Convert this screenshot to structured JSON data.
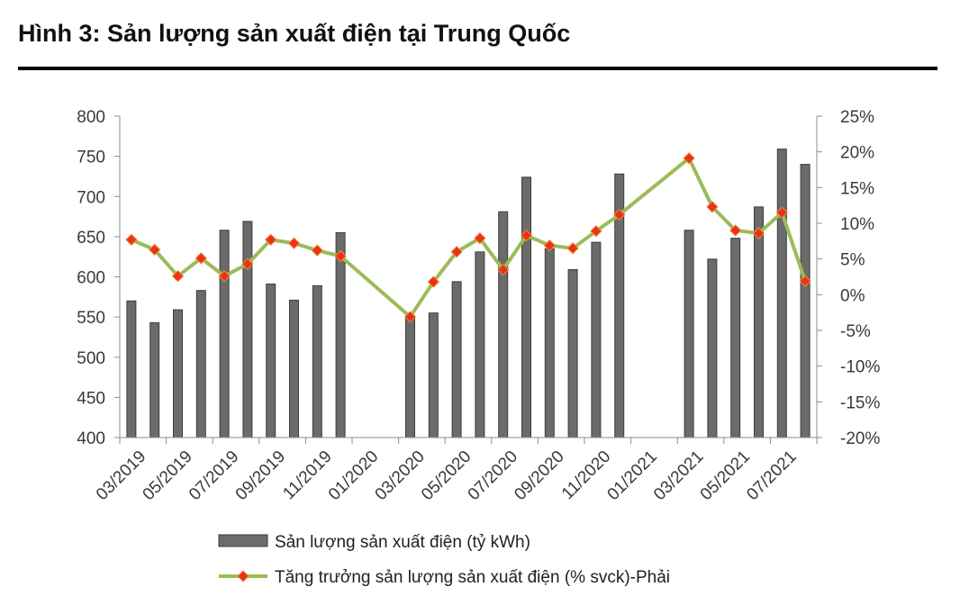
{
  "figure_title": "Hình 3: Sản lượng sản xuất điện tại Trung Quốc",
  "chart_data": {
    "type": "bar+line",
    "title": "Hình 3: Sản lượng sản xuất điện tại Trung Quốc",
    "categories": [
      "03/2019",
      "04/2019",
      "05/2019",
      "06/2019",
      "07/2019",
      "08/2019",
      "09/2019",
      "10/2019",
      "11/2019",
      "12/2019",
      "01/2020",
      "02/2020",
      "03/2020",
      "04/2020",
      "05/2020",
      "06/2020",
      "07/2020",
      "08/2020",
      "09/2020",
      "10/2020",
      "11/2020",
      "12/2020",
      "01/2021",
      "02/2021",
      "03/2021",
      "04/2021",
      "05/2021",
      "06/2021",
      "07/2021",
      "08/2021"
    ],
    "x_tick_labels": [
      "03/2019",
      "05/2019",
      "07/2019",
      "09/2019",
      "11/2019",
      "01/2020",
      "03/2020",
      "05/2020",
      "07/2020",
      "09/2020",
      "11/2020",
      "01/2021",
      "03/2021",
      "05/2021",
      "07/2021"
    ],
    "series": [
      {
        "name": "Sản lượng sản xuất điện (tỷ kWh)",
        "type": "bar",
        "axis": "left",
        "color": "#6b6b6b",
        "values": [
          570,
          543,
          559,
          583,
          658,
          669,
          591,
          571,
          589,
          655,
          null,
          null,
          551,
          555,
          594,
          631,
          681,
          724,
          635,
          609,
          643,
          728,
          null,
          null,
          658,
          622,
          648,
          687,
          759,
          740
        ]
      },
      {
        "name": "Tăng trưởng sản lượng sản xuất điện (% svck)-Phải",
        "type": "line",
        "axis": "right",
        "color": "#9bbb59",
        "marker_color": "#e8321e",
        "values": [
          7.7,
          6.3,
          2.6,
          5.1,
          2.6,
          4.3,
          7.7,
          7.2,
          6.2,
          5.4,
          null,
          null,
          -3.1,
          1.8,
          6.0,
          7.9,
          3.5,
          8.3,
          6.9,
          6.5,
          8.9,
          11.2,
          null,
          null,
          19.1,
          12.3,
          9.0,
          8.6,
          11.5,
          1.9
        ]
      }
    ],
    "yleft": {
      "min": 400,
      "max": 800,
      "step": 50,
      "ticks": [
        "400",
        "450",
        "500",
        "550",
        "600",
        "650",
        "700",
        "750",
        "800"
      ]
    },
    "yright": {
      "min": -20,
      "max": 25,
      "step": 5,
      "ticks": [
        "-20%",
        "-15%",
        "-10%",
        "-5%",
        "0%",
        "5%",
        "10%",
        "15%",
        "20%",
        "25%"
      ]
    },
    "legend_position": "bottom",
    "grid": false
  }
}
